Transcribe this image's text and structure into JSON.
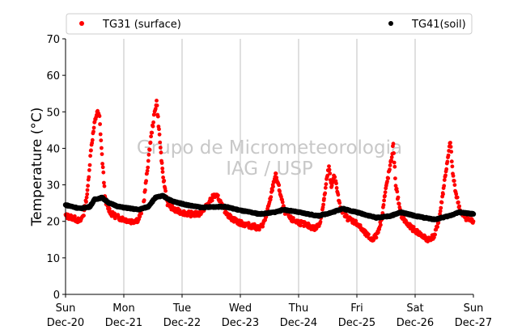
{
  "chart_data": {
    "type": "scatter",
    "title": "",
    "xlabel": "",
    "ylabel": "Temperature (°C)",
    "ylim": [
      0,
      70
    ],
    "yticks": [
      0,
      10,
      20,
      30,
      40,
      50,
      60,
      70
    ],
    "xlim": [
      "2020-12-20",
      "2020-12-27"
    ],
    "xticks": [
      {
        "line1": "Sun",
        "line2": "Dec-20"
      },
      {
        "line1": "Mon",
        "line2": "Dec-21"
      },
      {
        "line1": "Tue",
        "line2": "Dec-22"
      },
      {
        "line1": "Wed",
        "line2": "Dec-23"
      },
      {
        "line1": "Thu",
        "line2": "Dec-24"
      },
      {
        "line1": "Fri",
        "line2": "Dec-25"
      },
      {
        "line1": "Sat",
        "line2": "Dec-26"
      },
      {
        "line1": "Sun",
        "line2": "Dec-27"
      }
    ],
    "grid": "vertical",
    "legend_position": "top",
    "watermark": [
      "Grupo de Micrometeorologia",
      "IAG / USP"
    ],
    "series": [
      {
        "name": "TG31 (surface)",
        "color": "#ff0000",
        "points": [
          [
            "2020-12-20 00:00",
            21.5
          ],
          [
            "2020-12-20 03:00",
            21.0
          ],
          [
            "2020-12-20 06:00",
            20.0
          ],
          [
            "2020-12-20 07:30",
            22.0
          ],
          [
            "2020-12-20 09:00",
            28.0
          ],
          [
            "2020-12-20 10:30",
            40.0
          ],
          [
            "2020-12-20 12:00",
            47.0
          ],
          [
            "2020-12-20 13:00",
            50.0
          ],
          [
            "2020-12-20 14:00",
            48.5
          ],
          [
            "2020-12-20 15:00",
            38.0
          ],
          [
            "2020-12-20 16:30",
            25.0
          ],
          [
            "2020-12-20 19:00",
            22.0
          ],
          [
            "2020-12-20 22:00",
            21.0
          ],
          [
            "2020-12-21 03:00",
            20.0
          ],
          [
            "2020-12-21 06:00",
            20.5
          ],
          [
            "2020-12-21 08:00",
            24.0
          ],
          [
            "2020-12-21 09:30",
            33.0
          ],
          [
            "2020-12-21 11:00",
            42.0
          ],
          [
            "2020-12-21 12:30",
            49.0
          ],
          [
            "2020-12-21 13:30",
            53.0
          ],
          [
            "2020-12-21 14:30",
            45.0
          ],
          [
            "2020-12-21 16:00",
            33.0
          ],
          [
            "2020-12-21 18:00",
            25.0
          ],
          [
            "2020-12-21 21:00",
            23.0
          ],
          [
            "2020-12-22 03:00",
            22.0
          ],
          [
            "2020-12-22 07:00",
            22.0
          ],
          [
            "2020-12-22 09:00",
            23.5
          ],
          [
            "2020-12-22 11:00",
            25.0
          ],
          [
            "2020-12-22 13:00",
            27.0
          ],
          [
            "2020-12-22 15:00",
            26.5
          ],
          [
            "2020-12-22 17:00",
            23.5
          ],
          [
            "2020-12-22 20:00",
            21.0
          ],
          [
            "2020-12-23 00:00",
            19.5
          ],
          [
            "2020-12-23 06:00",
            18.5
          ],
          [
            "2020-12-23 08:00",
            18.0
          ],
          [
            "2020-12-23 10:00",
            20.0
          ],
          [
            "2020-12-23 12:00",
            25.0
          ],
          [
            "2020-12-23 13:30",
            30.0
          ],
          [
            "2020-12-23 14:30",
            33.0
          ],
          [
            "2020-12-23 16:00",
            29.0
          ],
          [
            "2020-12-23 18:00",
            23.0
          ],
          [
            "2020-12-23 21:00",
            20.5
          ],
          [
            "2020-12-24 03:00",
            19.0
          ],
          [
            "2020-12-24 07:00",
            18.0
          ],
          [
            "2020-12-24 09:00",
            20.0
          ],
          [
            "2020-12-24 10:30",
            26.0
          ],
          [
            "2020-12-24 11:30",
            31.0
          ],
          [
            "2020-12-24 12:30",
            35.0
          ],
          [
            "2020-12-24 13:30",
            29.0
          ],
          [
            "2020-12-24 14:30",
            33.0
          ],
          [
            "2020-12-24 15:30",
            30.0
          ],
          [
            "2020-12-24 17:00",
            24.0
          ],
          [
            "2020-12-24 20:00",
            21.0
          ],
          [
            "2020-12-25 00:00",
            19.5
          ],
          [
            "2020-12-25 03:00",
            17.0
          ],
          [
            "2020-12-25 06:00",
            15.0
          ],
          [
            "2020-12-25 08:00",
            16.0
          ],
          [
            "2020-12-25 10:00",
            20.0
          ],
          [
            "2020-12-25 11:30",
            27.0
          ],
          [
            "2020-12-25 12:30",
            31.0
          ],
          [
            "2020-12-25 14:00",
            36.0
          ],
          [
            "2020-12-25 15:00",
            41.0
          ],
          [
            "2020-12-25 16:00",
            30.0
          ],
          [
            "2020-12-25 18:00",
            22.0
          ],
          [
            "2020-12-25 21:00",
            19.0
          ],
          [
            "2020-12-26 01:00",
            17.0
          ],
          [
            "2020-12-26 05:00",
            15.0
          ],
          [
            "2020-12-26 08:00",
            16.0
          ],
          [
            "2020-12-26 10:00",
            21.0
          ],
          [
            "2020-12-26 11:30",
            28.0
          ],
          [
            "2020-12-26 12:30",
            33.0
          ],
          [
            "2020-12-26 13:30",
            37.0
          ],
          [
            "2020-12-26 14:30",
            42.0
          ],
          [
            "2020-12-26 15:30",
            33.0
          ],
          [
            "2020-12-26 17:00",
            27.0
          ],
          [
            "2020-12-26 19:00",
            22.0
          ],
          [
            "2020-12-26 22:00",
            20.5
          ],
          [
            "2020-12-27 00:00",
            20.0
          ]
        ]
      },
      {
        "name": "TG41(soil)",
        "color": "#000000",
        "points": [
          [
            "2020-12-20 00:00",
            24.5
          ],
          [
            "2020-12-20 06:00",
            23.5
          ],
          [
            "2020-12-20 10:00",
            24.0
          ],
          [
            "2020-12-20 12:00",
            26.0
          ],
          [
            "2020-12-20 15:00",
            26.5
          ],
          [
            "2020-12-20 18:00",
            25.0
          ],
          [
            "2020-12-20 22:00",
            24.0
          ],
          [
            "2020-12-21 06:00",
            23.2
          ],
          [
            "2020-12-21 10:00",
            24.0
          ],
          [
            "2020-12-21 13:00",
            26.5
          ],
          [
            "2020-12-21 16:00",
            27.0
          ],
          [
            "2020-12-21 20:00",
            25.5
          ],
          [
            "2020-12-22 02:00",
            24.5
          ],
          [
            "2020-12-22 08:00",
            23.8
          ],
          [
            "2020-12-22 14:00",
            24.0
          ],
          [
            "2020-12-22 18:00",
            24.0
          ],
          [
            "2020-12-23 00:00",
            23.0
          ],
          [
            "2020-12-23 08:00",
            22.0
          ],
          [
            "2020-12-23 14:00",
            22.5
          ],
          [
            "2020-12-23 18:00",
            23.2
          ],
          [
            "2020-12-24 00:00",
            22.5
          ],
          [
            "2020-12-24 08:00",
            21.5
          ],
          [
            "2020-12-24 14:00",
            22.5
          ],
          [
            "2020-12-24 18:00",
            23.5
          ],
          [
            "2020-12-25 00:00",
            22.5
          ],
          [
            "2020-12-25 08:00",
            21.0
          ],
          [
            "2020-12-25 14:00",
            21.5
          ],
          [
            "2020-12-25 18:00",
            22.5
          ],
          [
            "2020-12-26 00:00",
            21.5
          ],
          [
            "2020-12-26 08:00",
            20.5
          ],
          [
            "2020-12-26 14:00",
            21.5
          ],
          [
            "2020-12-26 18:00",
            22.5
          ],
          [
            "2020-12-27 00:00",
            22.0
          ]
        ]
      }
    ]
  }
}
